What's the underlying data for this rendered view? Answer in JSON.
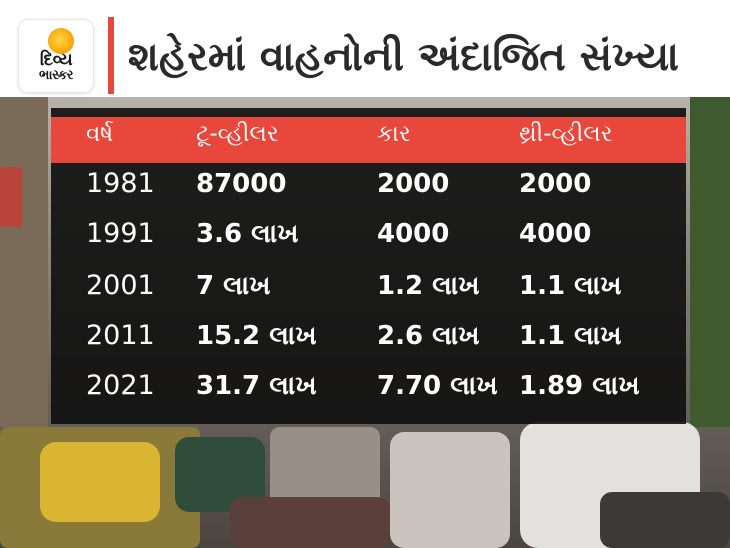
{
  "header": {
    "logo_line1": "દિવ્ય",
    "logo_line2": "ભાસ્કર",
    "title": "શહેરમાં વાહનોની અંદાજિત સંખ્યા"
  },
  "table": {
    "columns": [
      "વર્ષ",
      "ટૂ-વ્હીલર",
      "કાર",
      "થ્રી-વ્હીલર"
    ],
    "rows": [
      [
        "1981",
        "87000",
        "2000",
        "2000"
      ],
      [
        "1991",
        "3.6 લાખ",
        "4000",
        "4000"
      ],
      [
        "2001",
        "7 લાખ",
        "1.2 લાખ",
        "1.1 લાખ"
      ],
      [
        "2011",
        "15.2 લાખ",
        "2.6 લાખ",
        "1.1 લાખ"
      ],
      [
        "2021",
        "31.7 લાખ",
        "7.70 લાખ",
        "1.89 લાખ"
      ]
    ]
  },
  "colors": {
    "accent": "#e8473c",
    "panel": "#0e0e0e",
    "text": "#ffffff"
  },
  "icons": {
    "logo": "sun-logo-icon"
  }
}
